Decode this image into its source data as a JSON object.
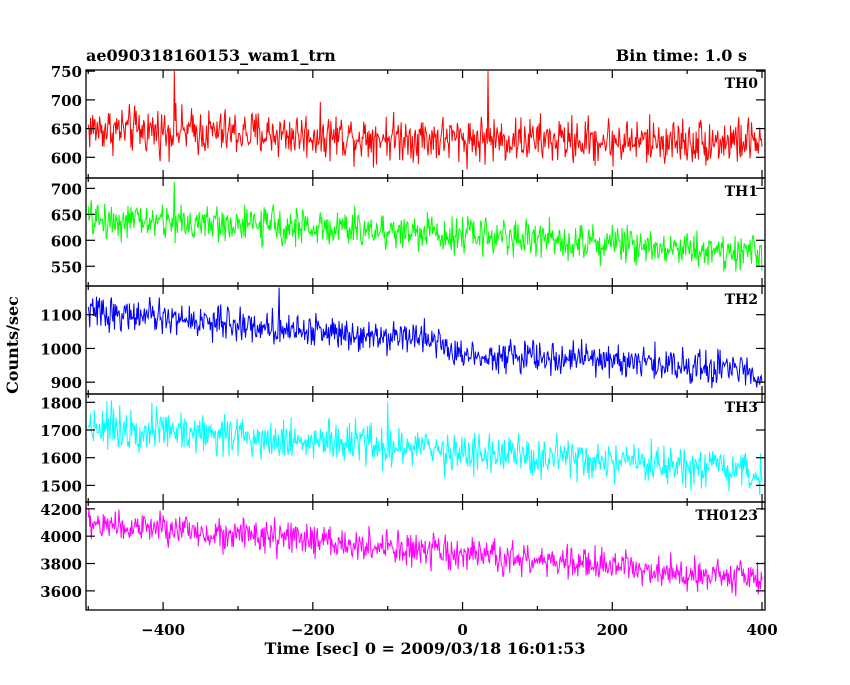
{
  "title_left": "ae090318160153_wam1_trn",
  "title_right": "Bin time: 1.0 s",
  "xlabel": "Time [sec] 0 = 2009/03/18 16:01:53",
  "ylabel": "Counts/sec",
  "chart_data": {
    "type": "line",
    "x_range": [
      -500,
      400
    ],
    "xlim": [
      -503,
      404
    ],
    "x_ticks": [
      -400,
      -200,
      0,
      200,
      400
    ],
    "x_tick_labels": [
      "−400",
      "−200",
      "0",
      "200",
      "400"
    ],
    "bin_time_sec": 1.0,
    "series": [
      {
        "name": "TH0",
        "color": "#ff0000",
        "ylim": [
          564,
          752
        ],
        "yticks": [
          600,
          650,
          700,
          750
        ],
        "trend": [
          [
            -500,
            650
          ],
          [
            -250,
            640
          ],
          [
            0,
            632
          ],
          [
            200,
            628
          ],
          [
            400,
            628
          ]
        ],
        "noise_amplitude": 32,
        "spikes": [
          [
            -385,
            750
          ],
          [
            34,
            750
          ]
        ]
      },
      {
        "name": "TH1",
        "color": "#00ff00",
        "ylim": [
          512,
          720
        ],
        "yticks": [
          550,
          600,
          650,
          700
        ],
        "trend": [
          [
            -500,
            640
          ],
          [
            -250,
            628
          ],
          [
            0,
            612
          ],
          [
            200,
            595
          ],
          [
            400,
            575
          ]
        ],
        "noise_amplitude": 28,
        "spikes": [
          [
            -385,
            712
          ]
        ]
      },
      {
        "name": "TH2",
        "color": "#0000ff",
        "ylim": [
          865,
          1185
        ],
        "yticks": [
          900,
          1000,
          1100
        ],
        "trend": [
          [
            -500,
            1110
          ],
          [
            -250,
            1060
          ],
          [
            -30,
            1030
          ],
          [
            -20,
            985
          ],
          [
            200,
            965
          ],
          [
            400,
            930
          ]
        ],
        "noise_amplitude": 38,
        "spikes": [
          [
            -245,
            1180
          ]
        ]
      },
      {
        "name": "TH3",
        "color": "#00ffff",
        "ylim": [
          1440,
          1830
        ],
        "yticks": [
          1500,
          1600,
          1700,
          1800
        ],
        "trend": [
          [
            -500,
            1720
          ],
          [
            -250,
            1670
          ],
          [
            0,
            1620
          ],
          [
            200,
            1580
          ],
          [
            400,
            1540
          ]
        ],
        "noise_amplitude": 60,
        "spikes": [
          [
            -100,
            1800
          ]
        ]
      },
      {
        "name": "TH0123",
        "color": "#ff00ff",
        "ylim": [
          3460,
          4250
        ],
        "yticks": [
          3600,
          3800,
          4000,
          4200
        ],
        "trend": [
          [
            -500,
            4090
          ],
          [
            -250,
            3990
          ],
          [
            0,
            3860
          ],
          [
            200,
            3780
          ],
          [
            400,
            3690
          ]
        ],
        "noise_amplitude": 95,
        "spikes": []
      }
    ]
  }
}
